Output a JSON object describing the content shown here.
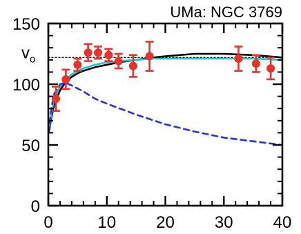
{
  "chart_data": {
    "type": "scatter",
    "title": "UMa: NGC 3769",
    "xlabel": "",
    "ylabel": "",
    "xlim": [
      0,
      40
    ],
    "ylim": [
      0,
      150
    ],
    "x_ticks": [
      0,
      10,
      20,
      30,
      40
    ],
    "y_ticks": [
      0,
      50,
      100,
      150
    ],
    "x_tick_labels": [
      "0",
      "10",
      "20",
      "30",
      "40"
    ],
    "y_tick_labels": [
      "0",
      "50",
      "100",
      "150"
    ],
    "annotation": {
      "main": "v",
      "sub": "o",
      "y": 122
    },
    "grid": false,
    "series": [
      {
        "kind": "points",
        "color": "#e8322b",
        "points": [
          {
            "x": 1.3,
            "y": 88,
            "yerr": 10
          },
          {
            "x": 3.0,
            "y": 104,
            "yerr": 8
          },
          {
            "x": 5.0,
            "y": 116,
            "yerr": 5
          },
          {
            "x": 6.8,
            "y": 126,
            "yerr": 7
          },
          {
            "x": 8.5,
            "y": 126,
            "yerr": 5
          },
          {
            "x": 10.3,
            "y": 124,
            "yerr": 5
          },
          {
            "x": 12.0,
            "y": 119,
            "yerr": 6
          },
          {
            "x": 14.5,
            "y": 115,
            "yerr": 9
          },
          {
            "x": 17.3,
            "y": 123,
            "yerr": 12
          },
          {
            "x": 32.5,
            "y": 121,
            "yerr": 10
          },
          {
            "x": 35.5,
            "y": 117,
            "yerr": 7
          },
          {
            "x": 38.0,
            "y": 113,
            "yerr": 9
          }
        ]
      },
      {
        "kind": "line",
        "style": "solid",
        "color": "#000000",
        "x": [
          0.1,
          0.5,
          1,
          2,
          3,
          4,
          5,
          6,
          8,
          10,
          12,
          15,
          18,
          20,
          25,
          30,
          35,
          40
        ],
        "y": [
          60,
          72,
          83,
          95,
          102,
          106,
          109,
          111,
          114,
          116,
          118,
          120,
          122,
          123,
          125,
          125,
          124,
          122
        ]
      },
      {
        "kind": "line",
        "style": "solid",
        "color": "#2ac0c8",
        "x": [
          0.1,
          0.5,
          1,
          2,
          3,
          4,
          5,
          6,
          8,
          10,
          12,
          15,
          18,
          20,
          25,
          30,
          35,
          40
        ],
        "y": [
          62,
          75,
          88,
          98,
          104,
          108,
          111,
          113,
          116,
          118,
          119,
          120,
          121,
          121,
          121,
          121,
          121,
          120
        ]
      },
      {
        "kind": "line",
        "style": "dashed",
        "color": "#2233e0",
        "x": [
          0.1,
          0.5,
          1,
          2,
          3,
          4,
          6,
          8,
          10,
          15,
          20,
          25,
          30,
          35,
          40
        ],
        "y": [
          60,
          80,
          92,
          100,
          101,
          99,
          94,
          88,
          84,
          75,
          67,
          61,
          56,
          53,
          50
        ]
      },
      {
        "kind": "line",
        "style": "dotted",
        "color": "#000000",
        "x": [
          0,
          40
        ],
        "y": [
          122,
          122
        ]
      }
    ]
  }
}
